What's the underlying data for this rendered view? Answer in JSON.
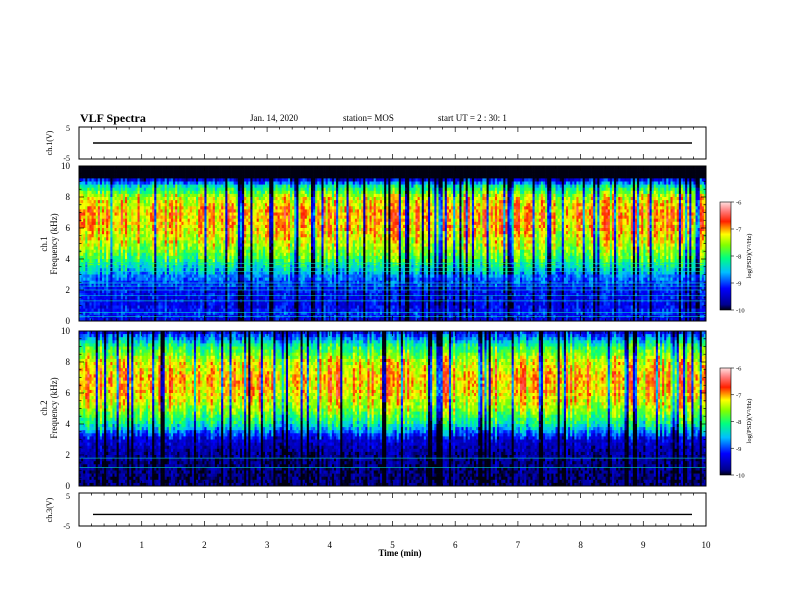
{
  "header": {
    "title": "VLF Spectra",
    "date": "Jan. 14, 2020",
    "station": "station= MOS",
    "start_ut": "start UT =  2 : 30: 1"
  },
  "chart_data": {
    "type": "heatmap",
    "x": {
      "label": "Time (min)",
      "range": [
        0,
        10
      ],
      "ticks": [
        "0",
        "1",
        "2",
        "3",
        "4",
        "5",
        "6",
        "7",
        "8",
        "9",
        "10"
      ]
    },
    "panels": [
      {
        "id": "ch1_waveform",
        "type": "line",
        "ylabel": "ch.1(V)",
        "ylim": [
          -5,
          5
        ],
        "yticks": [
          "5",
          "-5"
        ],
        "level_v": 0.0
      },
      {
        "id": "ch1_spectrogram",
        "type": "heatmap",
        "ylabel": "ch.1\nFrequency (kHz)",
        "ylabel_lines": [
          "ch.1",
          "Frequency (kHz)"
        ],
        "ylim": [
          0,
          10
        ],
        "yticks": [
          "0",
          "2",
          "4",
          "6",
          "8",
          "10"
        ],
        "colorbar": {
          "label": "log(PSD)(V²/Hz)",
          "range": [
            -10,
            -6
          ],
          "ticks": [
            "-6",
            "-7",
            "-8",
            "-9",
            "-10"
          ]
        },
        "profile_khz_to_log_psd": [
          [
            0.0,
            -9.4
          ],
          [
            0.5,
            -9.1
          ],
          [
            1.0,
            -9.3
          ],
          [
            2.0,
            -9.2
          ],
          [
            3.0,
            -8.7
          ],
          [
            3.5,
            -8.3
          ],
          [
            4.0,
            -7.9
          ],
          [
            5.0,
            -7.4
          ],
          [
            6.0,
            -7.1
          ],
          [
            7.0,
            -7.0
          ],
          [
            8.0,
            -7.4
          ],
          [
            8.7,
            -8.3
          ],
          [
            9.2,
            -9.6
          ],
          [
            10.0,
            -10.0
          ]
        ],
        "noise_lines_khz": [
          0.3,
          0.55,
          1.3,
          1.65,
          2.0,
          2.25,
          2.45,
          3.2,
          3.45,
          3.7
        ]
      },
      {
        "id": "ch2_spectrogram",
        "type": "heatmap",
        "ylabel_lines": [
          "ch.2",
          "Frequency (kHz)"
        ],
        "ylim": [
          0,
          10
        ],
        "yticks": [
          "0",
          "2",
          "4",
          "6",
          "8",
          "10"
        ],
        "colorbar": {
          "label": "log(PSD)(V²/Hz)",
          "range": [
            -10,
            -6
          ],
          "ticks": [
            "-6",
            "-7",
            "-8",
            "-9",
            "-10"
          ]
        },
        "profile_khz_to_log_psd": [
          [
            0.0,
            -9.8
          ],
          [
            1.0,
            -9.8
          ],
          [
            2.0,
            -9.7
          ],
          [
            3.0,
            -9.4
          ],
          [
            3.5,
            -8.8
          ],
          [
            4.0,
            -8.2
          ],
          [
            5.0,
            -7.5
          ],
          [
            6.0,
            -7.1
          ],
          [
            7.0,
            -7.0
          ],
          [
            8.0,
            -7.3
          ],
          [
            9.0,
            -8.0
          ],
          [
            9.6,
            -8.8
          ],
          [
            10.0,
            -9.4
          ]
        ],
        "noise_lines_khz": [
          1.2,
          1.8
        ]
      },
      {
        "id": "ch3_waveform",
        "type": "line",
        "ylabel": "ch.3(V)",
        "ylim": [
          -5,
          5
        ],
        "yticks": [
          "5",
          "-5"
        ],
        "level_v": -1.5
      }
    ],
    "colormap": "jet (black/dark-blue = -10, blue, cyan, green, yellow, red, light-pink = -6)",
    "grid": false
  }
}
